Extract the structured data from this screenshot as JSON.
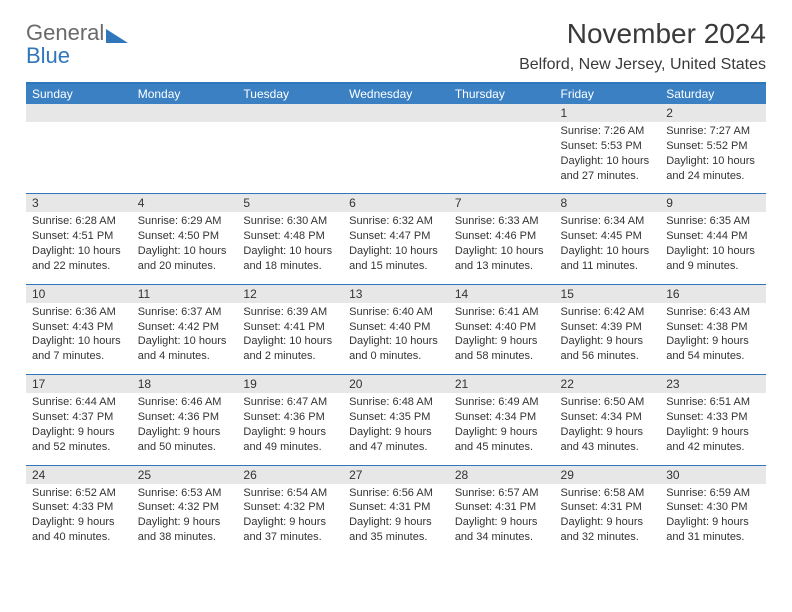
{
  "brand": {
    "part1": "General",
    "part2": "Blue"
  },
  "title": "November 2024",
  "location": "Belford, New Jersey, United States",
  "colors": {
    "header_bg": "#3a80c3",
    "rule": "#2f76ba",
    "daynum_bg": "#e7e7e7",
    "text": "#333333",
    "brand_gray": "#6a6a6a",
    "brand_blue": "#2f76ba",
    "page_bg": "#ffffff"
  },
  "typography": {
    "month_title_size": 28,
    "location_size": 16,
    "weekday_size": 12,
    "daynum_size": 12,
    "body_size": 11
  },
  "weekdays": [
    "Sunday",
    "Monday",
    "Tuesday",
    "Wednesday",
    "Thursday",
    "Friday",
    "Saturday"
  ],
  "weeks": [
    [
      {
        "day": "",
        "sunrise": "",
        "sunset": "",
        "daylight": ""
      },
      {
        "day": "",
        "sunrise": "",
        "sunset": "",
        "daylight": ""
      },
      {
        "day": "",
        "sunrise": "",
        "sunset": "",
        "daylight": ""
      },
      {
        "day": "",
        "sunrise": "",
        "sunset": "",
        "daylight": ""
      },
      {
        "day": "",
        "sunrise": "",
        "sunset": "",
        "daylight": ""
      },
      {
        "day": "1",
        "sunrise": "Sunrise: 7:26 AM",
        "sunset": "Sunset: 5:53 PM",
        "daylight": "Daylight: 10 hours and 27 minutes."
      },
      {
        "day": "2",
        "sunrise": "Sunrise: 7:27 AM",
        "sunset": "Sunset: 5:52 PM",
        "daylight": "Daylight: 10 hours and 24 minutes."
      }
    ],
    [
      {
        "day": "3",
        "sunrise": "Sunrise: 6:28 AM",
        "sunset": "Sunset: 4:51 PM",
        "daylight": "Daylight: 10 hours and 22 minutes."
      },
      {
        "day": "4",
        "sunrise": "Sunrise: 6:29 AM",
        "sunset": "Sunset: 4:50 PM",
        "daylight": "Daylight: 10 hours and 20 minutes."
      },
      {
        "day": "5",
        "sunrise": "Sunrise: 6:30 AM",
        "sunset": "Sunset: 4:48 PM",
        "daylight": "Daylight: 10 hours and 18 minutes."
      },
      {
        "day": "6",
        "sunrise": "Sunrise: 6:32 AM",
        "sunset": "Sunset: 4:47 PM",
        "daylight": "Daylight: 10 hours and 15 minutes."
      },
      {
        "day": "7",
        "sunrise": "Sunrise: 6:33 AM",
        "sunset": "Sunset: 4:46 PM",
        "daylight": "Daylight: 10 hours and 13 minutes."
      },
      {
        "day": "8",
        "sunrise": "Sunrise: 6:34 AM",
        "sunset": "Sunset: 4:45 PM",
        "daylight": "Daylight: 10 hours and 11 minutes."
      },
      {
        "day": "9",
        "sunrise": "Sunrise: 6:35 AM",
        "sunset": "Sunset: 4:44 PM",
        "daylight": "Daylight: 10 hours and 9 minutes."
      }
    ],
    [
      {
        "day": "10",
        "sunrise": "Sunrise: 6:36 AM",
        "sunset": "Sunset: 4:43 PM",
        "daylight": "Daylight: 10 hours and 7 minutes."
      },
      {
        "day": "11",
        "sunrise": "Sunrise: 6:37 AM",
        "sunset": "Sunset: 4:42 PM",
        "daylight": "Daylight: 10 hours and 4 minutes."
      },
      {
        "day": "12",
        "sunrise": "Sunrise: 6:39 AM",
        "sunset": "Sunset: 4:41 PM",
        "daylight": "Daylight: 10 hours and 2 minutes."
      },
      {
        "day": "13",
        "sunrise": "Sunrise: 6:40 AM",
        "sunset": "Sunset: 4:40 PM",
        "daylight": "Daylight: 10 hours and 0 minutes."
      },
      {
        "day": "14",
        "sunrise": "Sunrise: 6:41 AM",
        "sunset": "Sunset: 4:40 PM",
        "daylight": "Daylight: 9 hours and 58 minutes."
      },
      {
        "day": "15",
        "sunrise": "Sunrise: 6:42 AM",
        "sunset": "Sunset: 4:39 PM",
        "daylight": "Daylight: 9 hours and 56 minutes."
      },
      {
        "day": "16",
        "sunrise": "Sunrise: 6:43 AM",
        "sunset": "Sunset: 4:38 PM",
        "daylight": "Daylight: 9 hours and 54 minutes."
      }
    ],
    [
      {
        "day": "17",
        "sunrise": "Sunrise: 6:44 AM",
        "sunset": "Sunset: 4:37 PM",
        "daylight": "Daylight: 9 hours and 52 minutes."
      },
      {
        "day": "18",
        "sunrise": "Sunrise: 6:46 AM",
        "sunset": "Sunset: 4:36 PM",
        "daylight": "Daylight: 9 hours and 50 minutes."
      },
      {
        "day": "19",
        "sunrise": "Sunrise: 6:47 AM",
        "sunset": "Sunset: 4:36 PM",
        "daylight": "Daylight: 9 hours and 49 minutes."
      },
      {
        "day": "20",
        "sunrise": "Sunrise: 6:48 AM",
        "sunset": "Sunset: 4:35 PM",
        "daylight": "Daylight: 9 hours and 47 minutes."
      },
      {
        "day": "21",
        "sunrise": "Sunrise: 6:49 AM",
        "sunset": "Sunset: 4:34 PM",
        "daylight": "Daylight: 9 hours and 45 minutes."
      },
      {
        "day": "22",
        "sunrise": "Sunrise: 6:50 AM",
        "sunset": "Sunset: 4:34 PM",
        "daylight": "Daylight: 9 hours and 43 minutes."
      },
      {
        "day": "23",
        "sunrise": "Sunrise: 6:51 AM",
        "sunset": "Sunset: 4:33 PM",
        "daylight": "Daylight: 9 hours and 42 minutes."
      }
    ],
    [
      {
        "day": "24",
        "sunrise": "Sunrise: 6:52 AM",
        "sunset": "Sunset: 4:33 PM",
        "daylight": "Daylight: 9 hours and 40 minutes."
      },
      {
        "day": "25",
        "sunrise": "Sunrise: 6:53 AM",
        "sunset": "Sunset: 4:32 PM",
        "daylight": "Daylight: 9 hours and 38 minutes."
      },
      {
        "day": "26",
        "sunrise": "Sunrise: 6:54 AM",
        "sunset": "Sunset: 4:32 PM",
        "daylight": "Daylight: 9 hours and 37 minutes."
      },
      {
        "day": "27",
        "sunrise": "Sunrise: 6:56 AM",
        "sunset": "Sunset: 4:31 PM",
        "daylight": "Daylight: 9 hours and 35 minutes."
      },
      {
        "day": "28",
        "sunrise": "Sunrise: 6:57 AM",
        "sunset": "Sunset: 4:31 PM",
        "daylight": "Daylight: 9 hours and 34 minutes."
      },
      {
        "day": "29",
        "sunrise": "Sunrise: 6:58 AM",
        "sunset": "Sunset: 4:31 PM",
        "daylight": "Daylight: 9 hours and 32 minutes."
      },
      {
        "day": "30",
        "sunrise": "Sunrise: 6:59 AM",
        "sunset": "Sunset: 4:30 PM",
        "daylight": "Daylight: 9 hours and 31 minutes."
      }
    ]
  ]
}
